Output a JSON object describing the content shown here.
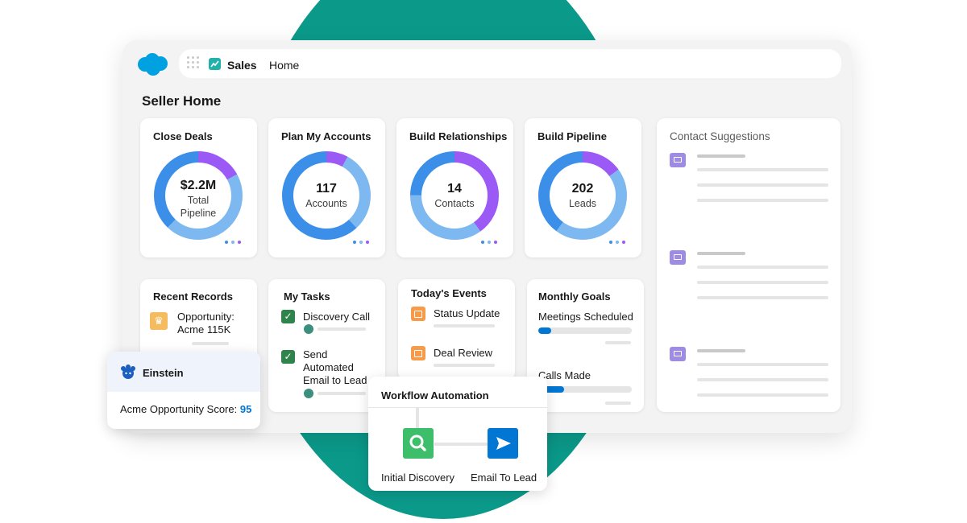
{
  "header": {
    "app_name": "Sales",
    "nav_item": "Home"
  },
  "page_title": "Seller Home",
  "colors": {
    "teal": "#0b9a8a",
    "brand_blue": "#0176d3",
    "ring_purple": "#9b59f5",
    "ring_blue": "#3b8fe8",
    "ring_light_blue": "#7db8f0"
  },
  "metric_cards": [
    {
      "title": "Close Deals",
      "value": "$2.2M",
      "label_line1": "Total",
      "label_line2": "Pipeline",
      "segments": {
        "purple": 0.17,
        "blue": 0.38,
        "light_blue": 0.45
      }
    },
    {
      "title": "Plan My Accounts",
      "value": "117",
      "label_line1": "Accounts",
      "label_line2": "",
      "segments": {
        "purple": 0.08,
        "blue": 0.62,
        "light_blue": 0.3
      }
    },
    {
      "title": "Build Relationships",
      "value": "14",
      "label_line1": "Contacts",
      "label_line2": "",
      "segments": {
        "purple": 0.4,
        "blue": 0.25,
        "light_blue": 0.35
      }
    },
    {
      "title": "Build Pipeline",
      "value": "202",
      "label_line1": "Leads",
      "label_line2": "",
      "segments": {
        "purple": 0.15,
        "blue": 0.4,
        "light_blue": 0.45
      }
    }
  ],
  "contact_suggestions": {
    "title": "Contact Suggestions",
    "icon": "contact-card-icon"
  },
  "recent_records": {
    "title": "Recent Records",
    "item_line1": "Opportunity:",
    "item_line2": "Acme 115K",
    "icon": "crown-icon"
  },
  "my_tasks": {
    "title": "My Tasks",
    "task1": "Discovery Call",
    "task2_line1": "Send",
    "task2_line2": "Automated",
    "task2_line3": "Email to Lead"
  },
  "todays_events": {
    "title": "Today's Events",
    "event1": "Status Update",
    "event2": "Deal Review"
  },
  "monthly_goals": {
    "title": "Monthly Goals",
    "goal1": "Meetings Scheduled",
    "goal1_progress": 0.14,
    "goal2": "Calls Made",
    "goal2_progress": 0.28
  },
  "einstein": {
    "title": "Einstein",
    "score_label": "Acme Opportunity Score:",
    "score_value": "95"
  },
  "workflow": {
    "title": "Workflow Automation",
    "step1": "Initial Discovery",
    "step2": "Email To Lead"
  }
}
